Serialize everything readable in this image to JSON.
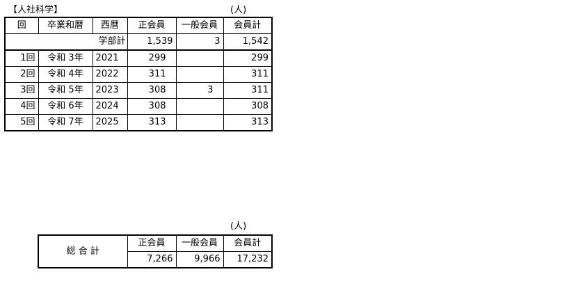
{
  "section_title": "【人社科学】",
  "unit": "(人)",
  "faculty_table": {
    "headers": [
      "回",
      "卒業和暦",
      "西暦",
      "正会員",
      "一般会員",
      "会員計"
    ],
    "subtotal": {
      "label": "学部計",
      "regular": "1,539",
      "general": "3",
      "total": "1,542"
    },
    "rows": [
      {
        "no": "1回",
        "era": "令和 3年",
        "year": "2021",
        "regular": "299",
        "general": "",
        "total": "299"
      },
      {
        "no": "2回",
        "era": "令和 4年",
        "year": "2022",
        "regular": "311",
        "general": "",
        "total": "311"
      },
      {
        "no": "3回",
        "era": "令和 5年",
        "year": "2023",
        "regular": "308",
        "general": "3",
        "total": "311"
      },
      {
        "no": "4回",
        "era": "令和 6年",
        "year": "2024",
        "regular": "308",
        "general": "",
        "total": "308"
      },
      {
        "no": "5回",
        "era": "令和 7年",
        "year": "2025",
        "regular": "313",
        "general": "",
        "total": "313"
      }
    ]
  },
  "grand_total": {
    "label": "総 合 計",
    "unit": "(人)",
    "headers": [
      "正会員",
      "一般会員",
      "会員計"
    ],
    "regular": "7,266",
    "general": "9,966",
    "total": "17,232"
  }
}
